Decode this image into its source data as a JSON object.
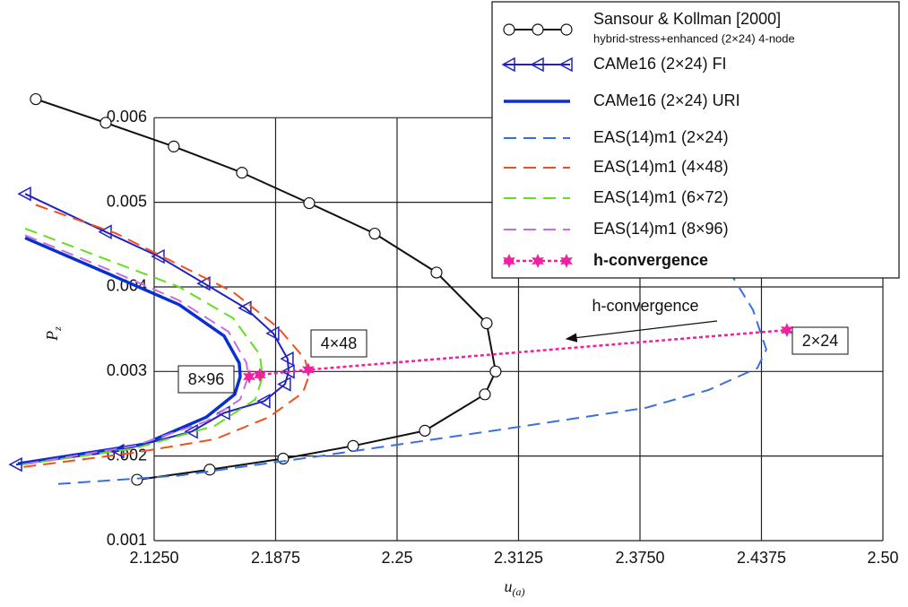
{
  "chart_data": {
    "type": "line",
    "xlabel": "u",
    "xlabel_sub": "(a)",
    "ylabel": "P",
    "ylabel_sub": "z",
    "xlim": [
      2.0526,
      2.5
    ],
    "ylim": [
      0.001,
      0.0063
    ],
    "xticks": [
      {
        "value": 2.125,
        "label": "2.1250"
      },
      2.1875,
      2.25,
      2.3125,
      {
        "value": 2.375,
        "label": "2.3750"
      },
      2.4375,
      {
        "value": 2.5,
        "label": "2.50"
      }
    ],
    "yticks": [
      0.001,
      0.002,
      0.003,
      0.004,
      0.005,
      0.006
    ],
    "grid": true,
    "legend": "top-right",
    "series": [
      {
        "name": "Sansour & Kollman [2000]",
        "name_sub": "hybrid-stress+enhanced (2×24) 4-node",
        "color": "#111111",
        "marker": "circle",
        "dash": "solid",
        "width": 2,
        "x": [
          2.0641,
          2.1001,
          2.1351,
          2.1702,
          2.2048,
          2.2385,
          2.2703,
          2.2961,
          2.3007,
          2.2952,
          2.2643,
          2.2274,
          2.1914,
          2.1536,
          2.1162
        ],
        "values": [
          0.00622,
          0.00594,
          0.00566,
          0.00535,
          0.00499,
          0.00463,
          0.00417,
          0.00357,
          0.003,
          0.00273,
          0.0023,
          0.00212,
          0.00197,
          0.00184,
          0.00172
        ]
      },
      {
        "name": "CAMe16 (2×24) FI",
        "color": "#2222c0",
        "marker": "triangle",
        "dash": "solid",
        "width": 2,
        "x": [
          2.0586,
          2.1001,
          2.1273,
          2.1508,
          2.172,
          2.1863,
          2.1937,
          2.1942,
          2.1923,
          2.1817,
          2.161,
          2.1444,
          2.1065,
          2.054
        ],
        "values": [
          0.0051,
          0.00465,
          0.00436,
          0.00404,
          0.00375,
          0.00345,
          0.00315,
          0.003,
          0.00285,
          0.00265,
          0.00251,
          0.00229,
          0.00206,
          0.0019
        ]
      },
      {
        "name": "CAMe16 (2×24) URI",
        "color": "#0a2fd0",
        "marker": null,
        "dash": "solid",
        "width": 3.5,
        "x": [
          2.0586,
          2.101,
          2.1379,
          2.161,
          2.1688,
          2.1693,
          2.1665,
          2.1518,
          2.1195,
          2.0549
        ],
        "values": [
          0.00458,
          0.00416,
          0.00379,
          0.00342,
          0.0031,
          0.00294,
          0.00273,
          0.00246,
          0.00214,
          0.00191
        ]
      },
      {
        "name": "EAS(14)m1 (2×24)",
        "color": "#3a6fe0",
        "marker": null,
        "dash": "dashed",
        "width": 2,
        "x": [
          2.0756,
          2.1379,
          2.2071,
          2.2994,
          2.3778,
          2.4101,
          2.4354,
          2.44,
          2.4331,
          2.4216
        ],
        "values": [
          0.00167,
          0.00177,
          0.00199,
          0.0023,
          0.00257,
          0.00278,
          0.00304,
          0.00326,
          0.00373,
          0.00416
        ]
      },
      {
        "name": "EAS(14)m1 (4×48)",
        "color": "#f05020",
        "marker": null,
        "dash": "dashed",
        "width": 2,
        "x": [
          2.0641,
          2.1056,
          2.1379,
          2.1656,
          2.1887,
          2.2025,
          2.2048,
          2.2016,
          2.184,
          2.1564,
          2.1149,
          2.054
        ],
        "values": [
          0.00497,
          0.00463,
          0.00426,
          0.00394,
          0.00352,
          0.00315,
          0.00296,
          0.00275,
          0.00246,
          0.0022,
          0.00204,
          0.00186
        ]
      },
      {
        "name": "EAS(14)m1 (6×72)",
        "color": "#66dd22",
        "marker": null,
        "dash": "dashed",
        "width": 2,
        "x": [
          2.0586,
          2.101,
          2.1379,
          2.1656,
          2.1794,
          2.1808,
          2.1771,
          2.1564,
          2.1149,
          2.0572
        ],
        "values": [
          0.00469,
          0.00432,
          0.004,
          0.00363,
          0.0032,
          0.00294,
          0.00267,
          0.00236,
          0.00209,
          0.0019
        ]
      },
      {
        "name": "EAS(14)m1 (8×96)",
        "color": "#c070e0",
        "marker": null,
        "dash": "dashed",
        "width": 2,
        "x": [
          2.0586,
          2.101,
          2.1379,
          2.1633,
          2.1725,
          2.1734,
          2.1693,
          2.1518,
          2.1149,
          2.0572
        ],
        "values": [
          0.00461,
          0.00421,
          0.00384,
          0.00347,
          0.0031,
          0.00294,
          0.00267,
          0.00241,
          0.00212,
          0.0019
        ]
      },
      {
        "name": "h-convergence",
        "color": "#f020a0",
        "marker": "star",
        "dash": "dotted",
        "width": 2.5,
        "x": [
          2.1739,
          2.1794,
          2.2043,
          2.4506
        ],
        "values": [
          0.00294,
          0.00296,
          0.00302,
          0.00349
        ]
      }
    ],
    "annotations": [
      "8×96",
      "4×48",
      "2×24",
      "h-convergence"
    ]
  }
}
